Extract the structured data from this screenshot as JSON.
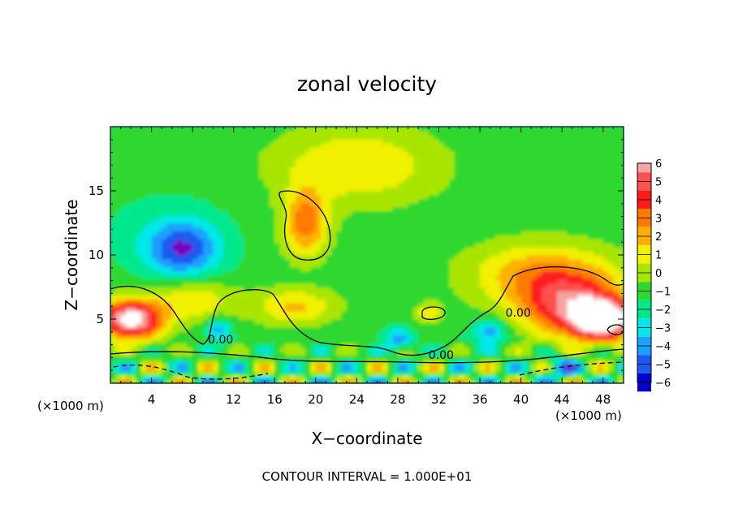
{
  "chart_data": {
    "type": "heatmap",
    "title": "zonal velocity",
    "xlabel": "X−coordinate",
    "ylabel": "Z−coordinate",
    "x_unit": "(×1000 m)",
    "z_unit": "(×1000 m)",
    "footer": "CONTOUR INTERVAL = 1.000E+01",
    "xlim": [
      0,
      50
    ],
    "ylim": [
      0,
      20
    ],
    "x_ticks": [
      4,
      8,
      12,
      16,
      20,
      24,
      28,
      32,
      36,
      40,
      44,
      48
    ],
    "y_ticks": [
      5,
      10,
      15
    ],
    "colorbar": {
      "levels": [
        6,
        5,
        4,
        3,
        2,
        1,
        0,
        -1,
        -2,
        -3,
        -4,
        -5,
        -6
      ],
      "level_labels": [
        "6",
        "5",
        "4",
        "3",
        "2",
        "1",
        "0",
        "−1",
        "−2",
        "−3",
        "−4",
        "−5",
        "−6"
      ],
      "colors": [
        "#f4a4a4",
        "#ff5050",
        "#ff1a1a",
        "#ff7a00",
        "#ffb000",
        "#f0f000",
        "#a8e600",
        "#2ed82e",
        "#00e88c",
        "#00e8e8",
        "#1aa0ff",
        "#1a5af0",
        "#0000c8",
        "#7800c0"
      ]
    },
    "background_value": -1.6,
    "features": [
      {
        "label": "blue jet core",
        "x": 7,
        "z": 10.5,
        "value": -5.8,
        "sx": 3.6,
        "sz": 2.2
      },
      {
        "label": "jet halo",
        "x": 5,
        "z": 12,
        "value": -2.2,
        "sx": 7,
        "sz": 3.5
      },
      {
        "label": "green bubble",
        "x": 19,
        "z": 12.5,
        "value": 2.6,
        "sx": 2.2,
        "sz": 2.6
      },
      {
        "label": "upper green",
        "x": 24,
        "z": 17,
        "value": 1.0,
        "sx": 8,
        "sz": 3
      },
      {
        "label": "right yellow",
        "x": 45,
        "z": 6,
        "value": 3.8,
        "sx": 5,
        "sz": 2.4
      },
      {
        "label": "right green",
        "x": 42,
        "z": 8.5,
        "value": 1.8,
        "sx": 7,
        "sz": 2.5
      },
      {
        "label": "left red",
        "x": 2,
        "z": 5,
        "value": 7,
        "sx": 3,
        "sz": 1.5
      },
      {
        "label": "right red",
        "x": 48,
        "z": 5,
        "value": 7,
        "sx": 3,
        "sz": 1.5
      },
      {
        "label": "green left",
        "x": 8,
        "z": 6.5,
        "value": 1.0,
        "sx": 4,
        "sz": 1.6
      },
      {
        "label": "green mid",
        "x": 18,
        "z": 6,
        "value": 1.2,
        "sx": 4,
        "sz": 1.4
      },
      {
        "label": "small green",
        "x": 31,
        "z": 5.5,
        "value": 1.0,
        "sx": 1.2,
        "sz": 0.8
      },
      {
        "label": "blue 1",
        "x": 10.5,
        "z": 4.2,
        "value": -4.5,
        "sx": 1.2,
        "sz": 1
      },
      {
        "label": "blue 2",
        "x": 28,
        "z": 3.5,
        "value": -4.5,
        "sx": 1.5,
        "sz": 0.9
      },
      {
        "label": "blue 3",
        "x": 37,
        "z": 4,
        "value": -4.8,
        "sx": 1.6,
        "sz": 1
      },
      {
        "label": "blue 4",
        "x": 44,
        "z": 1.2,
        "value": -4.5,
        "sx": 1.5,
        "sz": 0.8
      }
    ],
    "contour_labels": [
      {
        "text": "0.00",
        "x": 9.5,
        "z": 3.1
      },
      {
        "text": "0.00",
        "x": 31,
        "z": 1.9
      },
      {
        "text": "0.00",
        "x": 38.5,
        "z": 5.2
      }
    ]
  }
}
